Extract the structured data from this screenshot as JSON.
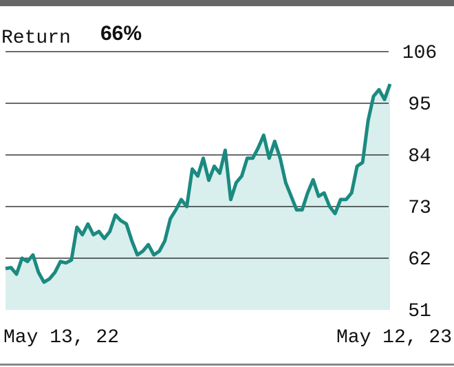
{
  "chart_data": {
    "type": "area",
    "title": "Return",
    "annotation": "66%",
    "categories": [
      "May 13, 22",
      null,
      null,
      null,
      null,
      null,
      null,
      null,
      null,
      null,
      null,
      null,
      null,
      null,
      null,
      null,
      null,
      null,
      null,
      null,
      null,
      null,
      null,
      null,
      null,
      null,
      null,
      null,
      null,
      null,
      null,
      null,
      null,
      null,
      null,
      null,
      null,
      null,
      null,
      null,
      null,
      null,
      null,
      null,
      null,
      null,
      null,
      null,
      null,
      null,
      null,
      null,
      null,
      null,
      null,
      null,
      null,
      null,
      null,
      null,
      null,
      null,
      null,
      null,
      null,
      null,
      null,
      null,
      null,
      null,
      "May 12, 23"
    ],
    "values": [
      59.8,
      60,
      58.6,
      62,
      61.3,
      62.7,
      59,
      56.9,
      57.6,
      59,
      61.3,
      61,
      61.6,
      68.6,
      67,
      69.3,
      67,
      67.7,
      66.2,
      67.7,
      71.2,
      70,
      69.3,
      65.7,
      62.7,
      63.5,
      64.9,
      62.7,
      63.5,
      65.7,
      70.4,
      72.3,
      74.5,
      73,
      81,
      79.5,
      83.3,
      78.6,
      81.6,
      80.1,
      85,
      74.5,
      78.1,
      79.5,
      83.3,
      83.3,
      85.5,
      88.2,
      83.3,
      86.9,
      83.3,
      78.1,
      75.2,
      72.3,
      72.3,
      75.9,
      78.7,
      75.2,
      75.9,
      73,
      71.5,
      74.5,
      74.5,
      75.9,
      81.6,
      82.4,
      91.3,
      96.5,
      97.9,
      95.8,
      99.1
    ],
    "color": "#1b8a80",
    "fill": "#d8efed",
    "ylim": [
      51,
      106
    ],
    "yticks": [
      51,
      62,
      73,
      84,
      95,
      106
    ],
    "grid": true
  }
}
